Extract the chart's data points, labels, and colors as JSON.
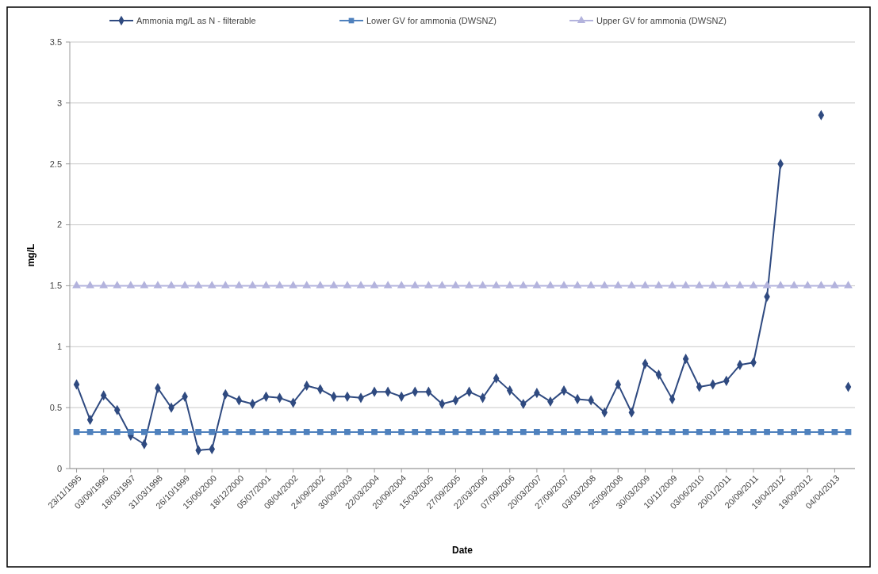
{
  "chart_data": {
    "type": "line",
    "xlabel": "Date",
    "ylabel": "mg/L",
    "categories": [
      "23/11/1995",
      null,
      "03/09/1996",
      null,
      "18/03/1997",
      null,
      "31/03/1998",
      null,
      "26/10/1999",
      null,
      "15/06/2000",
      null,
      "18/12/2000",
      null,
      "05/07/2001",
      null,
      "08/04/2002",
      null,
      "24/09/2002",
      null,
      "30/09/2003",
      null,
      "22/03/2004",
      null,
      "20/09/2004",
      null,
      "15/03/2005",
      null,
      "27/09/2005",
      null,
      "22/03/2006",
      null,
      "07/09/2006",
      null,
      "20/03/2007",
      null,
      "27/09/2007",
      null,
      "03/03/2008",
      null,
      "25/09/2008",
      null,
      "30/03/2009",
      null,
      "10/11/2009",
      null,
      "03/06/2010",
      null,
      "20/01/2011",
      null,
      "20/09/2011",
      null,
      "19/04/2012",
      null,
      "19/09/2012",
      null,
      "04/04/2013",
      null
    ],
    "series": [
      {
        "name": "Ammonia mg/L as N - filterable",
        "color": "#2f4a80",
        "marker": "diamond",
        "values": [
          0.69,
          0.4,
          0.6,
          0.48,
          0.27,
          0.2,
          0.66,
          0.5,
          0.59,
          0.15,
          0.16,
          0.61,
          0.56,
          0.53,
          0.59,
          0.58,
          0.54,
          0.68,
          0.65,
          0.59,
          0.59,
          0.58,
          0.63,
          0.63,
          0.59,
          0.63,
          0.63,
          0.53,
          0.56,
          0.63,
          0.58,
          0.74,
          0.64,
          0.53,
          0.62,
          0.55,
          0.64,
          0.57,
          0.56,
          0.46,
          0.69,
          0.46,
          0.86,
          0.77,
          0.57,
          0.9,
          0.67,
          0.69,
          0.72,
          0.85,
          0.87,
          1.41,
          2.5,
          null,
          null,
          2.9,
          null,
          0.67
        ]
      },
      {
        "name": "Lower GV for ammonia (DWSNZ)",
        "color": "#4f81bd",
        "marker": "square",
        "values": [
          0.3,
          0.3,
          0.3,
          0.3,
          0.3,
          0.3,
          0.3,
          0.3,
          0.3,
          0.3,
          0.3,
          0.3,
          0.3,
          0.3,
          0.3,
          0.3,
          0.3,
          0.3,
          0.3,
          0.3,
          0.3,
          0.3,
          0.3,
          0.3,
          0.3,
          0.3,
          0.3,
          0.3,
          0.3,
          0.3,
          0.3,
          0.3,
          0.3,
          0.3,
          0.3,
          0.3,
          0.3,
          0.3,
          0.3,
          0.3,
          0.3,
          0.3,
          0.3,
          0.3,
          0.3,
          0.3,
          0.3,
          0.3,
          0.3,
          0.3,
          0.3,
          0.3,
          0.3,
          0.3,
          0.3,
          0.3,
          0.3,
          0.3
        ]
      },
      {
        "name": "Upper GV for ammonia (DWSNZ)",
        "color": "#b3b3dd",
        "marker": "triangle",
        "values": [
          1.5,
          1.5,
          1.5,
          1.5,
          1.5,
          1.5,
          1.5,
          1.5,
          1.5,
          1.5,
          1.5,
          1.5,
          1.5,
          1.5,
          1.5,
          1.5,
          1.5,
          1.5,
          1.5,
          1.5,
          1.5,
          1.5,
          1.5,
          1.5,
          1.5,
          1.5,
          1.5,
          1.5,
          1.5,
          1.5,
          1.5,
          1.5,
          1.5,
          1.5,
          1.5,
          1.5,
          1.5,
          1.5,
          1.5,
          1.5,
          1.5,
          1.5,
          1.5,
          1.5,
          1.5,
          1.5,
          1.5,
          1.5,
          1.5,
          1.5,
          1.5,
          1.5,
          1.5,
          1.5,
          1.5,
          1.5,
          1.5,
          1.5
        ]
      }
    ],
    "ylim": [
      0,
      3.5
    ],
    "yticks": [
      0,
      0.5,
      1,
      1.5,
      2,
      2.5,
      3,
      3.5
    ],
    "grid": "y",
    "legend": "top",
    "line_style": "solid"
  }
}
